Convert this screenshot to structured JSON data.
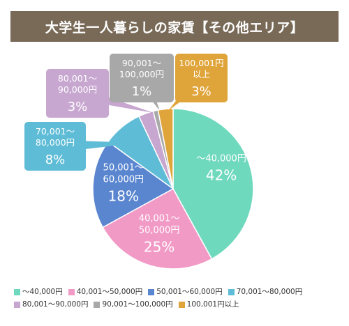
{
  "chart_data": {
    "type": "pie",
    "title": "大学生一人暮らしの家賃【その他エリア】",
    "unit": "%",
    "slices": [
      {
        "label": "～40,000円",
        "display": "～40,000円",
        "value": 42,
        "color": "#6fd9be"
      },
      {
        "label": "40,001～50,000円",
        "display": "40,001～\n50,000円",
        "value": 25,
        "color": "#f29ac6"
      },
      {
        "label": "50,001～60,000円",
        "display": "50,001～\n60,000円",
        "value": 18,
        "color": "#5a86d0"
      },
      {
        "label": "70,001～80,000円",
        "display": "70,001～\n80,000円",
        "value": 8,
        "color": "#5fbcd6"
      },
      {
        "label": "80,001～90,000円",
        "display": "80,001～\n90,000円",
        "value": 3,
        "color": "#c7a6d0"
      },
      {
        "label": "90,001～100,000円",
        "display": "90,001～\n100,000円",
        "value": 1,
        "color": "#a8a8a8"
      },
      {
        "label": "100,001円以上",
        "display": "100,001円\n以上",
        "value": 3,
        "color": "#e0a53a"
      }
    ]
  }
}
